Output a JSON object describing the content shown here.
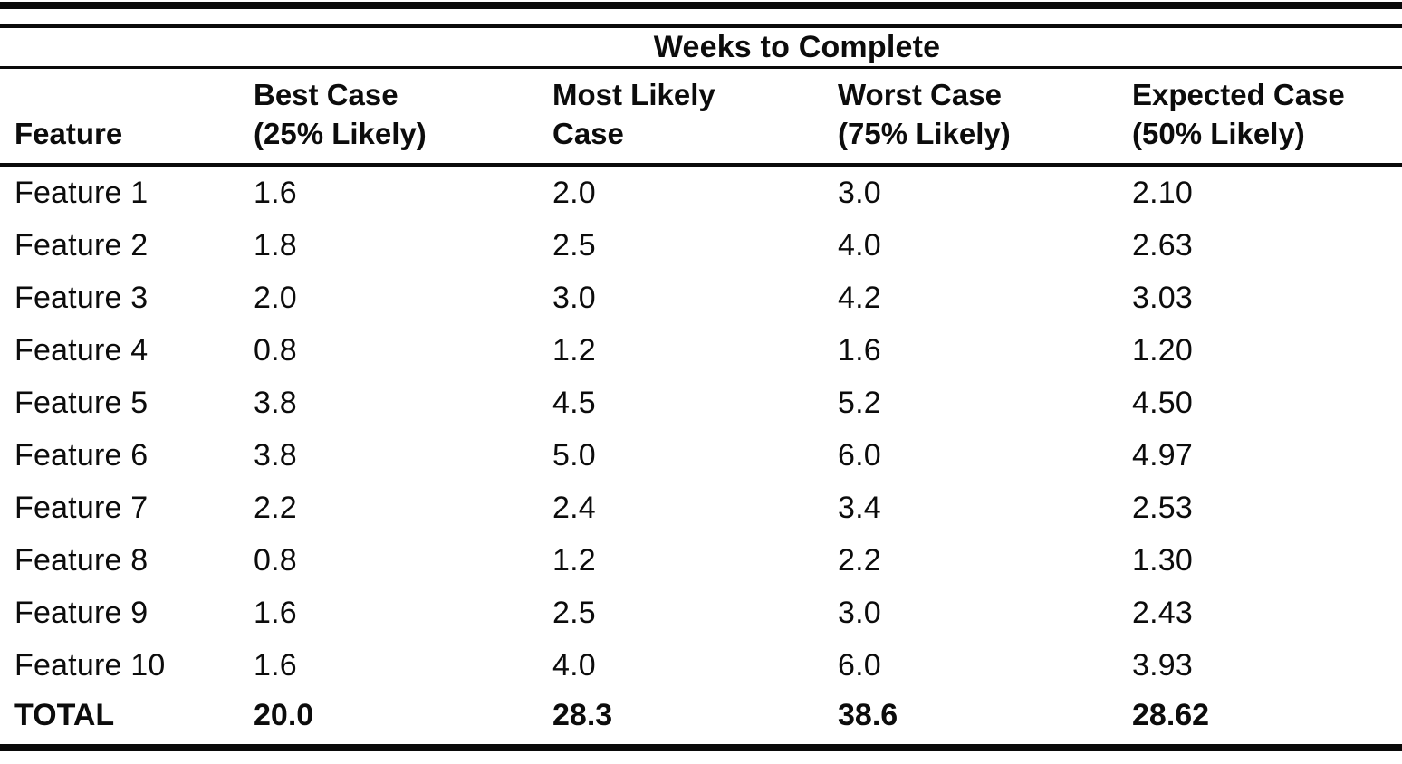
{
  "table": {
    "spanning_header": "Weeks to Complete",
    "columns": [
      {
        "label": "Feature",
        "sublabel": ""
      },
      {
        "label": "Best Case",
        "sublabel": "(25% Likely)"
      },
      {
        "label": "Most Likely",
        "sublabel": "Case"
      },
      {
        "label": "Worst Case",
        "sublabel": "(75% Likely)"
      },
      {
        "label": "Expected Case",
        "sublabel": "(50% Likely)"
      }
    ],
    "rows": [
      {
        "cells": [
          "Feature 1",
          "1.6",
          "2.0",
          "3.0",
          "2.10"
        ]
      },
      {
        "cells": [
          "Feature 2",
          "1.8",
          "2.5",
          "4.0",
          "2.63"
        ]
      },
      {
        "cells": [
          "Feature 3",
          "2.0",
          "3.0",
          "4.2",
          "3.03"
        ]
      },
      {
        "cells": [
          "Feature 4",
          "0.8",
          "1.2",
          "1.6",
          "1.20"
        ]
      },
      {
        "cells": [
          "Feature 5",
          "3.8",
          "4.5",
          "5.2",
          "4.50"
        ]
      },
      {
        "cells": [
          "Feature 6",
          "3.8",
          "5.0",
          "6.0",
          "4.97"
        ]
      },
      {
        "cells": [
          "Feature 7",
          "2.2",
          "2.4",
          "3.4",
          "2.53"
        ]
      },
      {
        "cells": [
          "Feature 8",
          "0.8",
          "1.2",
          "2.2",
          "1.30"
        ]
      },
      {
        "cells": [
          "Feature 9",
          "1.6",
          "2.5",
          "3.0",
          "2.43"
        ]
      },
      {
        "cells": [
          "Feature 10",
          "1.6",
          "4.0",
          "6.0",
          "3.93"
        ]
      }
    ],
    "total": {
      "cells": [
        "TOTAL",
        "20.0",
        "28.3",
        "38.6",
        "28.62"
      ]
    },
    "ink_color": "#0a0a0a",
    "paper_color": "#ffffff"
  },
  "chart_data": {
    "type": "table",
    "title": "Weeks to Complete",
    "categories": [
      "Feature 1",
      "Feature 2",
      "Feature 3",
      "Feature 4",
      "Feature 5",
      "Feature 6",
      "Feature 7",
      "Feature 8",
      "Feature 9",
      "Feature 10"
    ],
    "series": [
      {
        "name": "Best Case (25% Likely)",
        "values": [
          1.6,
          1.8,
          2.0,
          0.8,
          3.8,
          3.8,
          2.2,
          0.8,
          1.6,
          1.6
        ],
        "total": 20.0
      },
      {
        "name": "Most Likely Case",
        "values": [
          2.0,
          2.5,
          3.0,
          1.2,
          4.5,
          5.0,
          2.4,
          1.2,
          2.5,
          4.0
        ],
        "total": 28.3
      },
      {
        "name": "Worst Case (75% Likely)",
        "values": [
          3.0,
          4.0,
          4.2,
          1.6,
          5.2,
          6.0,
          3.4,
          2.2,
          3.0,
          6.0
        ],
        "total": 38.6
      },
      {
        "name": "Expected Case (50% Likely)",
        "values": [
          2.1,
          2.63,
          3.03,
          1.2,
          4.5,
          4.97,
          2.53,
          1.3,
          2.43,
          3.93
        ],
        "total": 28.62
      }
    ]
  }
}
